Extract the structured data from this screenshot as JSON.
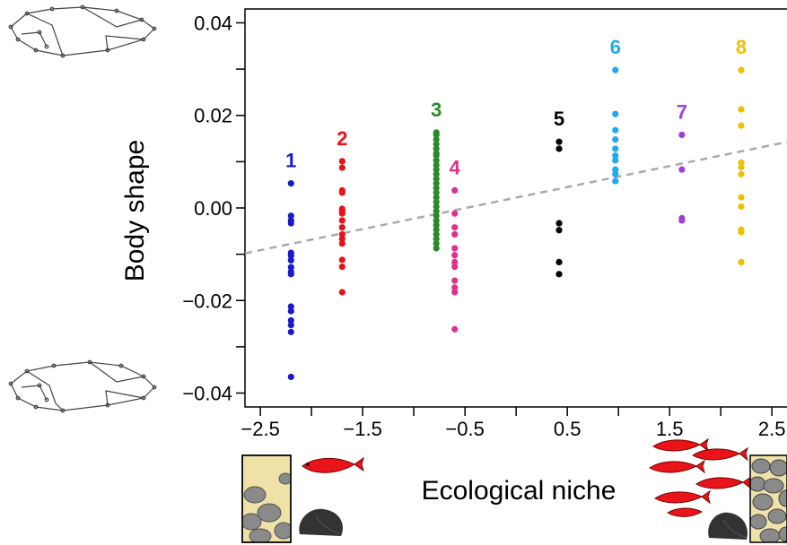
{
  "chart_data": {
    "type": "scatter",
    "xlabel": "Ecological niche",
    "ylabel": "Body shape",
    "xlim": [
      -2.65,
      2.7
    ],
    "ylim": [
      -0.043,
      0.043
    ],
    "x_ticks": [
      "-2.5",
      "-1.5",
      "-0.5",
      "0.5",
      "1.5",
      "2.5"
    ],
    "y_ticks": [
      "0.04",
      "0.02",
      "0.00",
      "-0.02",
      "-0.04"
    ],
    "trend_line": {
      "style": "dashed",
      "color": "#aaaaaa",
      "from": [
        -2.65,
        -0.0098
      ],
      "to": [
        2.7,
        0.0145
      ]
    },
    "series": [
      {
        "label": "1",
        "color": "#1a1acc",
        "x": -2.2,
        "values": [
          0.0053,
          -0.0017,
          -0.0027,
          -0.0033,
          -0.0097,
          -0.0103,
          -0.0113,
          -0.0128,
          -0.0138,
          -0.0143,
          -0.0213,
          -0.0223,
          -0.0243,
          -0.0253,
          -0.0268,
          -0.0365
        ]
      },
      {
        "label": "2",
        "color": "#e8141a",
        "x": -1.7,
        "values": [
          0.0101,
          0.0087,
          0.0038,
          0.0033,
          -0.0002,
          -0.0007,
          -0.0012,
          -0.0027,
          -0.0042,
          -0.0057,
          -0.0067,
          -0.0077,
          -0.0112,
          -0.0127,
          -0.0182
        ]
      },
      {
        "label": "3",
        "color": "#2a8a2a",
        "x": -0.78,
        "values": [
          0.0163,
          0.0158,
          0.0148,
          0.0138,
          0.0128,
          0.0118,
          0.0113,
          0.0103,
          0.0093,
          0.0083,
          0.0073,
          0.0063,
          0.0053,
          0.0043,
          0.0033,
          0.0023,
          0.0013,
          0.0003,
          -0.0007,
          -0.0017,
          -0.0027,
          -0.0037,
          -0.0047,
          -0.0057,
          -0.0067,
          -0.0077,
          -0.0087
        ]
      },
      {
        "label": "4",
        "color": "#e0308e",
        "x": -0.6,
        "values": [
          0.0038,
          -0.0012,
          -0.0042,
          -0.0057,
          -0.0087,
          -0.0102,
          -0.0117,
          -0.0127,
          -0.0157,
          -0.0172,
          -0.0182,
          -0.0262
        ]
      },
      {
        "label": "5",
        "color": "#000000",
        "x": 0.42,
        "values": [
          0.0143,
          0.0128,
          -0.0033,
          -0.0048,
          -0.0117,
          -0.0143
        ]
      },
      {
        "label": "6",
        "color": "#1eaaf0",
        "x": 0.97,
        "values": [
          0.0298,
          0.0203,
          0.0168,
          0.0148,
          0.0128,
          0.0113,
          0.0103,
          0.0083,
          0.0073,
          0.0058
        ]
      },
      {
        "label": "7",
        "color": "#a040d8",
        "x": 1.62,
        "values": [
          0.0158,
          0.0083,
          -0.0022,
          -0.0027
        ]
      },
      {
        "label": "8",
        "color": "#f0c000",
        "x": 2.2,
        "values": [
          0.0298,
          0.0213,
          0.0178,
          0.0098,
          0.0088,
          0.0073,
          0.0023,
          0.0003,
          -0.0047,
          -0.0052,
          -0.0117
        ]
      }
    ]
  },
  "icons": {
    "top_left": "fish-landmark-outline-icon",
    "bottom_left": "fish-landmark-outline-icon",
    "niche_low_habitat": "sparse-rock-habitat-icon",
    "niche_low_fish": "single-red-fish-icon",
    "niche_low_rock": "dark-rock-icon",
    "niche_high_fish": "red-fish-school-icon",
    "niche_high_rock": "dark-rock-icon",
    "niche_high_habitat": "dense-rock-habitat-icon"
  }
}
